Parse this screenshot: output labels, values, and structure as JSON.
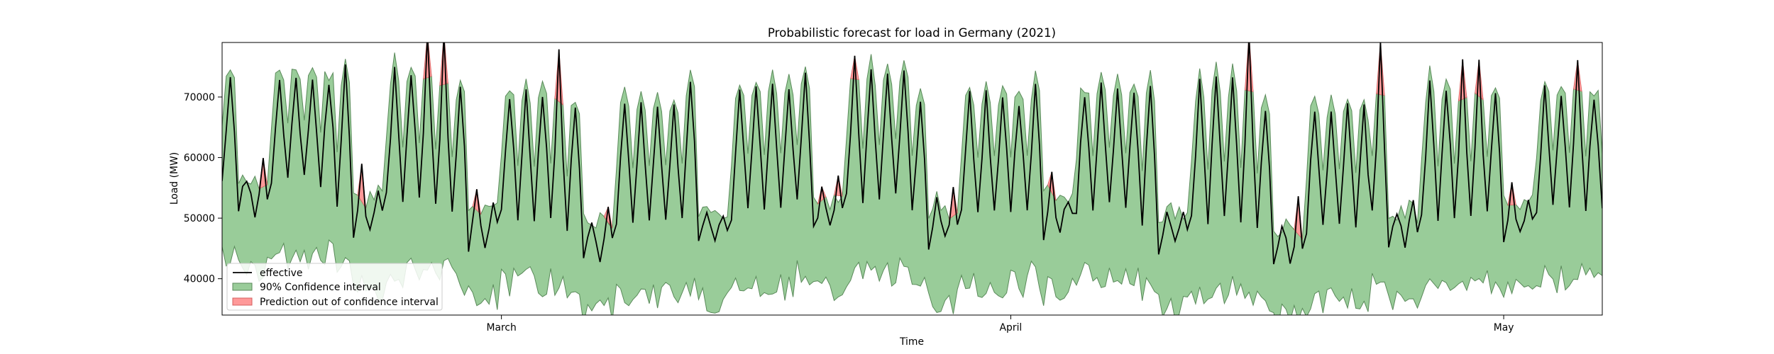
{
  "chart_data": {
    "type": "area",
    "title": "Probabilistic forecast for load in Germany (2021)",
    "xlabel": "Time",
    "ylabel": "Load (MW)",
    "x_range": [
      "2021-02-12",
      "2021-05-07"
    ],
    "ylim": [
      34000,
      79000
    ],
    "yticks": [
      40000,
      50000,
      60000,
      70000
    ],
    "yticks_labels": [
      "40000",
      "50000",
      "60000",
      "70000"
    ],
    "xticks": [
      {
        "date": "2021-03-01",
        "label": "March"
      },
      {
        "date": "2021-04-01",
        "label": "April"
      },
      {
        "date": "2021-05-01",
        "label": "May"
      }
    ],
    "sampling": "6-hourly",
    "grid": false,
    "legend": {
      "placement": "lower-left",
      "entries": [
        "effective",
        "90% Confidence interval",
        "Prediction out of confidence interval"
      ]
    },
    "colors": {
      "effective": "#000000",
      "interval_fill": "#99cc99",
      "interval_edge": "#5a8a5a",
      "out_of_interval": "#ff9999"
    },
    "weekly_peak_mw": [
      73000,
      74500,
      71000,
      69500,
      72500,
      73500,
      70000,
      71000,
      72500,
      69000,
      71500,
      70500
    ],
    "weekend_floor_mw": [
      51000,
      48000,
      46500,
      44000,
      45500,
      48000,
      46000,
      47500,
      45000,
      43000,
      45500,
      47000
    ],
    "night_trough_mw": [
      56000,
      53000,
      50500,
      48500,
      50500,
      53000,
      51000,
      52000,
      50000,
      48000,
      50500,
      52000
    ],
    "series": [
      {
        "name": "effective",
        "kind": "line"
      },
      {
        "name": "90% Confidence interval",
        "kind": "band"
      },
      {
        "name": "Prediction out of confidence interval",
        "kind": "highlight"
      }
    ]
  }
}
